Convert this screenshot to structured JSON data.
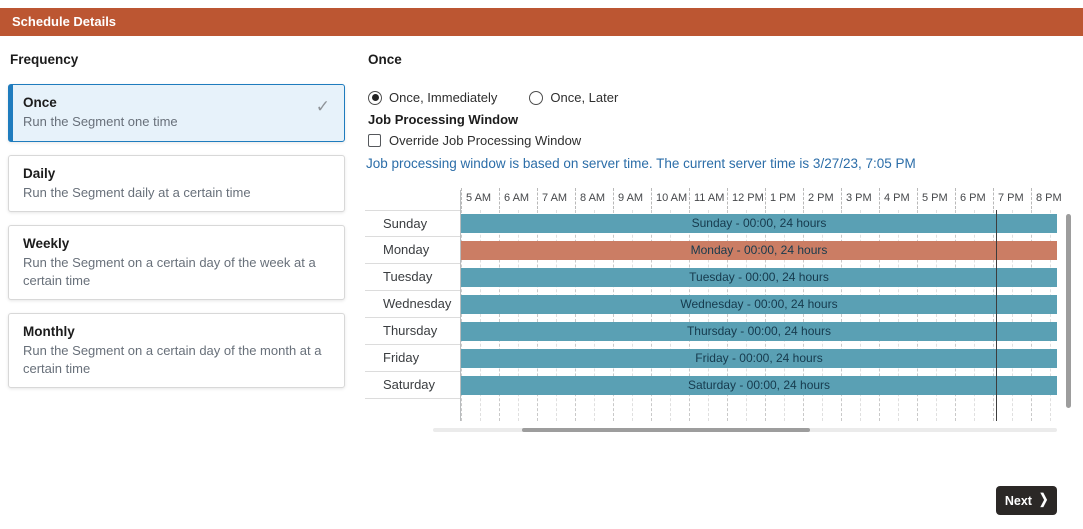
{
  "header": {
    "title": "Schedule Details"
  },
  "frequency": {
    "label": "Frequency",
    "options": [
      {
        "title": "Once",
        "description": "Run the Segment one time",
        "selected": true
      },
      {
        "title": "Daily",
        "description": "Run the Segment daily at a certain time",
        "selected": false
      },
      {
        "title": "Weekly",
        "description": "Run the Segment on a certain day of the week at a certain time",
        "selected": false
      },
      {
        "title": "Monthly",
        "description": "Run the Segment on a certain day of the month at a certain time",
        "selected": false
      }
    ]
  },
  "once_panel": {
    "title": "Once",
    "radio_options": [
      {
        "label": "Once, Immediately",
        "selected": true
      },
      {
        "label": "Once, Later",
        "selected": false
      }
    ],
    "job_processing_window": {
      "heading": "Job Processing Window",
      "override_checkbox_label": "Override Job Processing Window",
      "override_checked": false,
      "info_text": "Job processing window is based on server time. The current server time is 3/27/23, 7:05 PM"
    }
  },
  "chart_data": {
    "type": "gantt",
    "hours": [
      "5 AM",
      "6 AM",
      "7 AM",
      "8 AM",
      "9 AM",
      "10 AM",
      "11 AM",
      "12 PM",
      "1 PM",
      "2 PM",
      "3 PM",
      "4 PM",
      "5 PM",
      "6 PM",
      "7 PM",
      "8 PM"
    ],
    "rows": [
      {
        "day": "Sunday",
        "bar_label": "Sunday - 00:00, 24 hours",
        "color": "#5AA0B4"
      },
      {
        "day": "Monday",
        "bar_label": "Monday - 00:00, 24 hours",
        "color": "#CB7D64"
      },
      {
        "day": "Tuesday",
        "bar_label": "Tuesday - 00:00, 24 hours",
        "color": "#5AA0B4"
      },
      {
        "day": "Wednesday",
        "bar_label": "Wednesday - 00:00, 24 hours",
        "color": "#5AA0B4"
      },
      {
        "day": "Thursday",
        "bar_label": "Thursday - 00:00, 24 hours",
        "color": "#5AA0B4"
      },
      {
        "day": "Friday",
        "bar_label": "Friday - 00:00, 24 hours",
        "color": "#5AA0B4"
      },
      {
        "day": "Saturday",
        "bar_label": "Saturday - 00:00, 24 hours",
        "color": "#5AA0B4"
      }
    ],
    "current_time_label": "7:05 PM",
    "current_time_hour_offset": 14.08
  },
  "colors": {
    "header_bg": "#BC5632",
    "selected_card_border": "#1F7CBE",
    "selected_card_bg": "#E7F2FA",
    "bar_blue": "#5AA0B4",
    "bar_red": "#CB7D64",
    "bar_text": "#163A4D",
    "info_text": "#2B6DA8",
    "next_button_bg": "#2B2826"
  },
  "next_button": {
    "label": "Next",
    "chevron": "❯"
  },
  "icons": {
    "selected_check": "✓"
  }
}
